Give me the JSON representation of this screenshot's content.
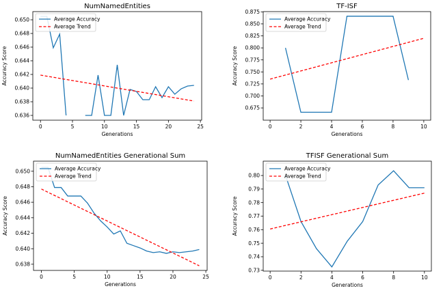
{
  "chart_data": [
    {
      "type": "line",
      "title": "NumNamedEntities",
      "xlabel": "Generations",
      "ylabel": "Accuracy Score",
      "xlim": [
        -1.2,
        25.2
      ],
      "ylim": [
        0.6353,
        0.6512
      ],
      "xticks": [
        0,
        5,
        10,
        15,
        20,
        25
      ],
      "yticks": [
        0.636,
        0.638,
        0.64,
        0.642,
        0.644,
        0.646,
        0.648,
        0.65
      ],
      "ytick_labels": [
        "0.636",
        "0.638",
        "0.640",
        "0.642",
        "0.644",
        "0.646",
        "0.648",
        "0.650"
      ],
      "legend": "top-left",
      "series": [
        {
          "name": "Average Accuracy",
          "color": "#1f77b4",
          "style": "solid",
          "x": [
            0,
            1,
            2,
            3,
            4,
            5,
            6,
            7,
            8,
            9,
            10,
            11,
            12,
            13,
            14,
            15,
            16,
            17,
            18,
            19,
            20,
            21,
            22,
            23,
            24
          ],
          "y": [
            0.6505,
            0.6505,
            0.6459,
            0.6479,
            0.636,
            null,
            null,
            0.636,
            0.636,
            0.6419,
            0.636,
            0.636,
            0.6434,
            0.636,
            0.6398,
            0.6395,
            0.6383,
            0.6383,
            0.6402,
            0.6386,
            0.6402,
            0.6391,
            0.6399,
            0.6403,
            0.6404
          ]
        },
        {
          "name": "Average Trend",
          "color": "#ff0000",
          "style": "dashed",
          "x": [
            0,
            24
          ],
          "y": [
            0.6419,
            0.6381
          ]
        }
      ]
    },
    {
      "type": "line",
      "title": "TF-ISF",
      "xlabel": "Generations",
      "ylabel": "Accuracy Score",
      "xlim": [
        -0.45,
        10.45
      ],
      "ylim": [
        0.6495,
        0.8755
      ],
      "xticks": [
        0,
        2,
        4,
        6,
        8,
        10
      ],
      "yticks": [
        0.675,
        0.7,
        0.725,
        0.75,
        0.775,
        0.8,
        0.825,
        0.85,
        0.875
      ],
      "ytick_labels": [
        "0.675",
        "0.700",
        "0.725",
        "0.750",
        "0.775",
        "0.800",
        "0.825",
        "0.850",
        "0.875"
      ],
      "legend": "top-left",
      "series": [
        {
          "name": "Average Accuracy",
          "color": "#1f77b4",
          "style": "solid",
          "x": [
            1,
            2,
            3,
            4,
            5,
            6,
            7,
            8,
            9
          ],
          "y": [
            0.8,
            0.666,
            0.666,
            0.666,
            0.866,
            0.866,
            0.866,
            0.866,
            0.733
          ]
        },
        {
          "name": "Average Trend",
          "color": "#ff0000",
          "style": "dashed",
          "x": [
            0,
            10
          ],
          "y": [
            0.735,
            0.82
          ]
        }
      ]
    },
    {
      "type": "line",
      "title": "NumNamedEntities Generational Sum",
      "xlabel": "Generations",
      "ylabel": "Accuracy Score",
      "xlim": [
        -1.2,
        25.2
      ],
      "ylim": [
        0.6372,
        0.6513
      ],
      "xticks": [
        0,
        5,
        10,
        15,
        20,
        25
      ],
      "yticks": [
        0.638,
        0.64,
        0.642,
        0.644,
        0.646,
        0.648,
        0.65
      ],
      "ytick_labels": [
        "0.638",
        "0.640",
        "0.642",
        "0.644",
        "0.646",
        "0.648",
        "0.650"
      ],
      "legend": "top-left",
      "series": [
        {
          "name": "Average Accuracy",
          "color": "#1f77b4",
          "style": "solid",
          "x": [
            0,
            1,
            2,
            3,
            4,
            5,
            6,
            7,
            8,
            9,
            10,
            11,
            12,
            13,
            14,
            15,
            16,
            17,
            18,
            19,
            20,
            21,
            22,
            23,
            24
          ],
          "y": [
            0.6505,
            0.6505,
            0.6479,
            0.6479,
            0.6468,
            0.6468,
            0.6468,
            0.6459,
            0.6446,
            0.6436,
            0.6428,
            0.6419,
            0.6423,
            0.6407,
            0.6404,
            0.6401,
            0.6397,
            0.6395,
            0.6396,
            0.6394,
            0.6396,
            0.6395,
            0.6396,
            0.6397,
            0.6399
          ]
        },
        {
          "name": "Average Trend",
          "color": "#ff0000",
          "style": "dashed",
          "x": [
            0,
            24
          ],
          "y": [
            0.6477,
            0.6378
          ]
        }
      ]
    },
    {
      "type": "line",
      "title": "TFISF Generational Sum",
      "xlabel": "Generations",
      "ylabel": "Accuracy Score",
      "xlim": [
        -0.45,
        10.45
      ],
      "ylim": [
        0.7294,
        0.8106
      ],
      "xticks": [
        0,
        2,
        4,
        6,
        8,
        10
      ],
      "yticks": [
        0.73,
        0.74,
        0.75,
        0.76,
        0.77,
        0.78,
        0.79,
        0.8
      ],
      "ytick_labels": [
        "0.73",
        "0.74",
        "0.75",
        "0.76",
        "0.77",
        "0.78",
        "0.79",
        "0.80"
      ],
      "legend": "top-left",
      "series": [
        {
          "name": "Average Accuracy",
          "color": "#1f77b4",
          "style": "solid",
          "x": [
            1,
            2,
            3,
            4,
            5,
            6,
            7,
            8,
            9,
            10
          ],
          "y": [
            0.8,
            0.766,
            0.746,
            0.7325,
            0.7515,
            0.766,
            0.793,
            0.8035,
            0.791,
            0.791
          ]
        },
        {
          "name": "Average Trend",
          "color": "#ff0000",
          "style": "dashed",
          "x": [
            0,
            10
          ],
          "y": [
            0.7605,
            0.787
          ]
        }
      ]
    }
  ]
}
